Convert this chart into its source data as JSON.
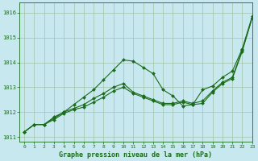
{
  "title": "Graphe pression niveau de la mer (hPa)",
  "background_color": "#c8e8f0",
  "grid_color": "#99bb99",
  "line_color": "#1a6b1a",
  "marker_color": "#1a6b1a",
  "xlim": [
    -0.5,
    23
  ],
  "ylim": [
    1010.8,
    1016.4
  ],
  "xticks": [
    0,
    1,
    2,
    3,
    4,
    5,
    6,
    7,
    8,
    9,
    10,
    11,
    12,
    13,
    14,
    15,
    16,
    17,
    18,
    19,
    20,
    21,
    22,
    23
  ],
  "yticks": [
    1011,
    1012,
    1013,
    1014,
    1015,
    1016
  ],
  "series": [
    [
      1011.2,
      1011.5,
      1011.5,
      1011.8,
      1012.0,
      1012.3,
      1012.6,
      1012.9,
      1013.3,
      1013.7,
      1014.1,
      1014.05,
      1013.8,
      1013.55,
      1012.9,
      1012.65,
      1012.25,
      1012.3,
      1012.9,
      1013.05,
      1013.4,
      1013.65,
      1014.55,
      1015.85
    ],
    [
      1011.2,
      1011.5,
      1011.5,
      1011.75,
      1012.0,
      1012.15,
      1012.3,
      1012.55,
      1012.75,
      1013.0,
      1013.15,
      1012.8,
      1012.65,
      1012.5,
      1012.35,
      1012.35,
      1012.45,
      1012.35,
      1012.45,
      1012.85,
      1013.2,
      1013.4,
      1014.5,
      1015.8
    ],
    [
      1011.2,
      1011.5,
      1011.5,
      1011.7,
      1011.95,
      1012.1,
      1012.2,
      1012.4,
      1012.6,
      1012.85,
      1013.0,
      1012.75,
      1012.6,
      1012.45,
      1012.3,
      1012.3,
      1012.4,
      1012.3,
      1012.35,
      1012.8,
      1013.15,
      1013.35,
      1014.45,
      1015.8
    ]
  ],
  "title_fontsize": 6,
  "tick_fontsize": 4.5,
  "linewidth": 0.8,
  "markersize": 2.0
}
